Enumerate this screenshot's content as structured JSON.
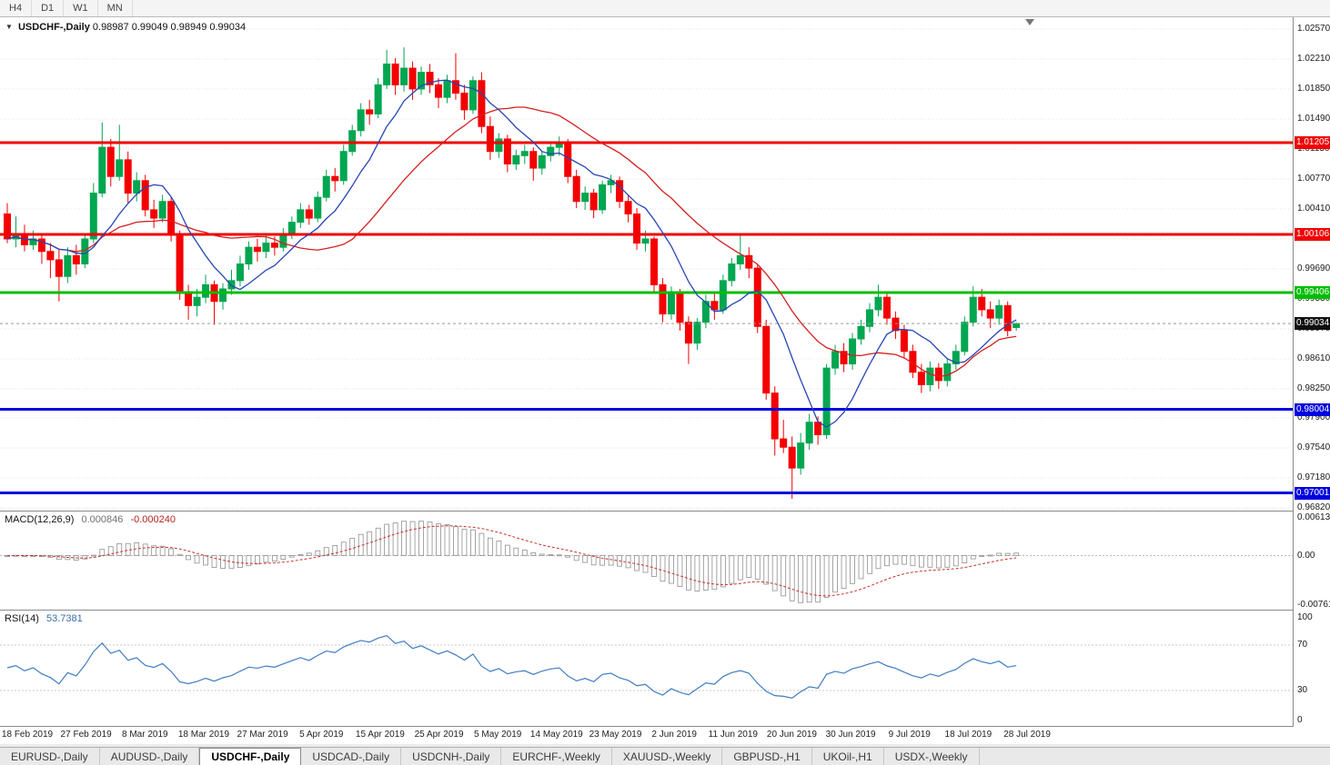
{
  "toolbar": {
    "timeframes": [
      "H4",
      "D1",
      "W1",
      "MN"
    ]
  },
  "chart": {
    "header": {
      "symbol": "USDCHF-,Daily",
      "open": "0.98987",
      "high": "0.99049",
      "low": "0.98949",
      "close": "0.99034"
    },
    "price_axis_ticks": [
      "1.02570",
      "1.02210",
      "1.01850",
      "1.01490",
      "1.01130",
      "1.00770",
      "1.00410",
      "1.00050",
      "0.99690",
      "0.99330",
      "0.98970",
      "0.98610",
      "0.98250",
      "0.97900",
      "0.97540",
      "0.97180",
      "0.96820"
    ],
    "level_lines": [
      {
        "price": 1.01205,
        "label": "1.01205",
        "color": "#f00000"
      },
      {
        "price": 1.00106,
        "label": "1.00106",
        "color": "#f00000"
      },
      {
        "price": 0.99406,
        "label": "0.99406",
        "color": "#00be00"
      },
      {
        "price": 0.98004,
        "label": "0.98004",
        "color": "#0000e0"
      },
      {
        "price": 0.97001,
        "label": "0.97001",
        "color": "#0000e0"
      }
    ],
    "current_price": {
      "value": 0.99034,
      "label": "0.99034",
      "badge_color": "#101010"
    }
  },
  "macd": {
    "name": "MACD(12,26,9)",
    "value_main": "0.000846",
    "value_signal": "-0.000240",
    "axis": [
      "0.00613",
      "0.00",
      "-0.00761"
    ]
  },
  "rsi": {
    "name": "RSI(14)",
    "value": "53.7381",
    "axis": [
      "100",
      "70",
      "30",
      "0"
    ],
    "levels": [
      70,
      30
    ]
  },
  "date_axis": [
    "18 Feb 2019",
    "27 Feb 2019",
    "8 Mar 2019",
    "18 Mar 2019",
    "27 Mar 2019",
    "5 Apr 2019",
    "15 Apr 2019",
    "25 Apr 2019",
    "5 May 2019",
    "14 May 2019",
    "23 May 2019",
    "2 Jun 2019",
    "11 Jun 2019",
    "20 Jun 2019",
    "30 Jun 2019",
    "9 Jul 2019",
    "18 Jul 2019",
    "28 Jul 2019"
  ],
  "tabs": {
    "items": [
      "EURUSD-,Daily",
      "AUDUSD-,Daily",
      "USDCHF-,Daily",
      "USDCAD-,Daily",
      "USDCNH-,Daily",
      "EURCHF-,Weekly",
      "XAUUSD-,Weekly",
      "GBPUSD-,H1",
      "UKOil-,H1",
      "USDX-,Weekly"
    ],
    "active_index": 2
  },
  "chart_data": {
    "type": "candlestick",
    "symbol": "USDCHF",
    "timeframe": "Daily",
    "price_range": {
      "top": 1.027,
      "bottom": 0.968
    },
    "up_color": "#00a650",
    "down_color": "#f40000",
    "overlays": {
      "ma_fast_period": 8,
      "ma_fast_color": "#2646b4",
      "ma_slow_period": 21,
      "ma_slow_color": "#d42020"
    },
    "macd_range": {
      "max": 0.0068,
      "min": -0.0082
    },
    "candles": [
      [
        1.0035,
        1.0048,
        1.0,
        1.0005
      ],
      [
        1.0005,
        1.0032,
        0.9995,
        1.001
      ],
      [
        1.001,
        1.0022,
        0.999,
        0.9998
      ],
      [
        0.9998,
        1.0015,
        0.9992,
        1.0005
      ],
      [
        1.0005,
        1.0012,
        0.9975,
        0.999
      ],
      [
        0.999,
        1.0,
        0.9958,
        0.998
      ],
      [
        0.998,
        0.9992,
        0.993,
        0.996
      ],
      [
        0.996,
        0.9995,
        0.9952,
        0.9985
      ],
      [
        0.9985,
        0.9998,
        0.9962,
        0.9975
      ],
      [
        0.9975,
        1.0012,
        0.997,
        1.0005
      ],
      [
        1.0005,
        1.0072,
        1.0,
        1.006
      ],
      [
        1.006,
        1.0145,
        1.0055,
        1.0115
      ],
      [
        1.0115,
        1.0125,
        1.0068,
        1.008
      ],
      [
        1.008,
        1.0142,
        1.0075,
        1.01
      ],
      [
        1.01,
        1.011,
        1.0048,
        1.006
      ],
      [
        1.006,
        1.0085,
        1.005,
        1.0075
      ],
      [
        1.0075,
        1.0082,
        1.0032,
        1.004
      ],
      [
        1.004,
        1.0052,
        1.0018,
        1.003
      ],
      [
        1.003,
        1.0058,
        1.0025,
        1.005
      ],
      [
        1.005,
        1.0055,
        1.0002,
        1.001
      ],
      [
        1.001,
        1.0015,
        0.9932,
        0.994
      ],
      [
        0.994,
        0.995,
        0.9908,
        0.9925
      ],
      [
        0.9925,
        0.9945,
        0.9912,
        0.9935
      ],
      [
        0.9935,
        0.9962,
        0.9928,
        0.995
      ],
      [
        0.995,
        0.9955,
        0.9902,
        0.993
      ],
      [
        0.993,
        0.9952,
        0.992,
        0.9945
      ],
      [
        0.9945,
        0.9968,
        0.9938,
        0.9955
      ],
      [
        0.9955,
        0.9985,
        0.9948,
        0.9975
      ],
      [
        0.9975,
        1.0002,
        0.9968,
        0.9995
      ],
      [
        0.9995,
        1.0005,
        0.9978,
        0.999
      ],
      [
        0.999,
        1.001,
        0.9982,
        1.0
      ],
      [
        1.0,
        1.0008,
        0.9985,
        0.9995
      ],
      [
        0.9995,
        1.0018,
        0.999,
        1.001
      ],
      [
        1.001,
        1.0032,
        1.0005,
        1.0025
      ],
      [
        1.0025,
        1.0048,
        1.0018,
        1.004
      ],
      [
        1.004,
        1.0046,
        1.0022,
        1.003
      ],
      [
        1.003,
        1.0062,
        1.0025,
        1.0055
      ],
      [
        1.0055,
        1.0088,
        1.005,
        1.008
      ],
      [
        1.008,
        1.009,
        1.0062,
        1.0075
      ],
      [
        1.0075,
        1.0118,
        1.007,
        1.011
      ],
      [
        1.011,
        1.0142,
        1.0105,
        1.0135
      ],
      [
        1.0135,
        1.0168,
        1.0128,
        1.016
      ],
      [
        1.016,
        1.0172,
        1.0142,
        1.0155
      ],
      [
        1.0155,
        1.0198,
        1.015,
        1.019
      ],
      [
        1.019,
        1.0232,
        1.0185,
        1.0215
      ],
      [
        1.0215,
        1.0222,
        1.0178,
        1.019
      ],
      [
        1.019,
        1.0235,
        1.0182,
        1.021
      ],
      [
        1.021,
        1.0218,
        1.0172,
        1.0185
      ],
      [
        1.0185,
        1.0212,
        1.0178,
        1.0205
      ],
      [
        1.0205,
        1.0215,
        1.018,
        1.019
      ],
      [
        1.019,
        1.0198,
        1.0162,
        1.0175
      ],
      [
        1.0175,
        1.0202,
        1.0168,
        1.0195
      ],
      [
        1.0195,
        1.0228,
        1.0172,
        1.018
      ],
      [
        1.018,
        1.019,
        1.0148,
        1.016
      ],
      [
        1.016,
        1.02,
        1.0155,
        1.0195
      ],
      [
        1.0195,
        1.0205,
        1.0132,
        1.014
      ],
      [
        1.014,
        1.0152,
        1.01,
        1.011
      ],
      [
        1.011,
        1.0132,
        1.0102,
        1.0125
      ],
      [
        1.0125,
        1.013,
        1.0085,
        1.0095
      ],
      [
        1.0095,
        1.0112,
        1.0088,
        1.0105
      ],
      [
        1.0105,
        1.0118,
        1.0095,
        1.011
      ],
      [
        1.011,
        1.0115,
        1.0075,
        1.009
      ],
      [
        1.009,
        1.011,
        1.0082,
        1.0105
      ],
      [
        1.0105,
        1.0122,
        1.0098,
        1.0115
      ],
      [
        1.0115,
        1.0128,
        1.0105,
        1.012
      ],
      [
        1.012,
        1.0125,
        1.0072,
        1.008
      ],
      [
        1.008,
        1.0088,
        1.0042,
        1.005
      ],
      [
        1.005,
        1.0068,
        1.004,
        1.006
      ],
      [
        1.006,
        1.0065,
        1.003,
        1.004
      ],
      [
        1.004,
        1.0075,
        1.0035,
        1.007
      ],
      [
        1.007,
        1.0082,
        1.006,
        1.0075
      ],
      [
        1.0075,
        1.008,
        1.0042,
        1.005
      ],
      [
        1.005,
        1.0058,
        1.0025,
        1.0035
      ],
      [
        1.0035,
        1.0042,
        0.9992,
        1.0
      ],
      [
        1.0,
        1.0015,
        0.999,
        1.0005
      ],
      [
        1.0005,
        1.0008,
        0.994,
        0.995
      ],
      [
        0.995,
        0.9958,
        0.9905,
        0.9915
      ],
      [
        0.9915,
        0.9948,
        0.9908,
        0.994
      ],
      [
        0.994,
        0.9945,
        0.9895,
        0.9905
      ],
      [
        0.9905,
        0.9912,
        0.9855,
        0.988
      ],
      [
        0.988,
        0.991,
        0.9872,
        0.9905
      ],
      [
        0.9905,
        0.9938,
        0.9898,
        0.993
      ],
      [
        0.993,
        0.994,
        0.9908,
        0.992
      ],
      [
        0.992,
        0.9962,
        0.9915,
        0.9955
      ],
      [
        0.9955,
        0.9982,
        0.9948,
        0.9975
      ],
      [
        0.9975,
        1.001,
        0.9968,
        0.9985
      ],
      [
        0.9985,
        0.9995,
        0.9958,
        0.997
      ],
      [
        0.997,
        0.9975,
        0.9892,
        0.99
      ],
      [
        0.99,
        0.9908,
        0.9812,
        0.982
      ],
      [
        0.982,
        0.9828,
        0.9745,
        0.9765
      ],
      [
        0.9765,
        0.9788,
        0.9748,
        0.9755
      ],
      [
        0.9755,
        0.9768,
        0.9693,
        0.973
      ],
      [
        0.973,
        0.9772,
        0.9722,
        0.976
      ],
      [
        0.976,
        0.9795,
        0.9752,
        0.9785
      ],
      [
        0.9785,
        0.9792,
        0.9758,
        0.977
      ],
      [
        0.977,
        0.9855,
        0.9765,
        0.985
      ],
      [
        0.985,
        0.9878,
        0.9842,
        0.987
      ],
      [
        0.987,
        0.988,
        0.9845,
        0.9855
      ],
      [
        0.9855,
        0.9892,
        0.9848,
        0.9885
      ],
      [
        0.9885,
        0.9908,
        0.9878,
        0.99
      ],
      [
        0.99,
        0.9928,
        0.9893,
        0.992
      ],
      [
        0.992,
        0.995,
        0.9912,
        0.9935
      ],
      [
        0.9935,
        0.9942,
        0.9902,
        0.991
      ],
      [
        0.991,
        0.9918,
        0.9885,
        0.9895
      ],
      [
        0.9895,
        0.9902,
        0.9862,
        0.987
      ],
      [
        0.987,
        0.9878,
        0.9838,
        0.9845
      ],
      [
        0.9845,
        0.9855,
        0.982,
        0.983
      ],
      [
        0.983,
        0.9858,
        0.9822,
        0.985
      ],
      [
        0.985,
        0.9856,
        0.9825,
        0.9835
      ],
      [
        0.9835,
        0.9862,
        0.9828,
        0.9855
      ],
      [
        0.9855,
        0.9878,
        0.9848,
        0.987
      ],
      [
        0.987,
        0.9912,
        0.9865,
        0.9905
      ],
      [
        0.9905,
        0.9948,
        0.99,
        0.9935
      ],
      [
        0.9935,
        0.9945,
        0.9912,
        0.992
      ],
      [
        0.992,
        0.993,
        0.9898,
        0.991
      ],
      [
        0.991,
        0.9932,
        0.9902,
        0.9925
      ],
      [
        0.9925,
        0.993,
        0.9888,
        0.9895
      ],
      [
        0.98987,
        0.99049,
        0.98949,
        0.99034
      ]
    ]
  }
}
